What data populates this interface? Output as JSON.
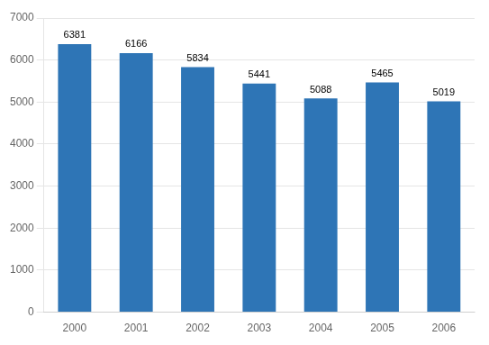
{
  "chart_data": {
    "type": "bar",
    "categories": [
      "2000",
      "2001",
      "2002",
      "2003",
      "2004",
      "2005",
      "2006"
    ],
    "values": [
      6381,
      6166,
      5834,
      5441,
      5088,
      5465,
      5019
    ],
    "color": "#2E75B6",
    "ylim": [
      0,
      7000
    ],
    "yticks": [
      0,
      1000,
      2000,
      3000,
      4000,
      5000,
      6000,
      7000
    ],
    "grid": true,
    "data_labels": true
  }
}
